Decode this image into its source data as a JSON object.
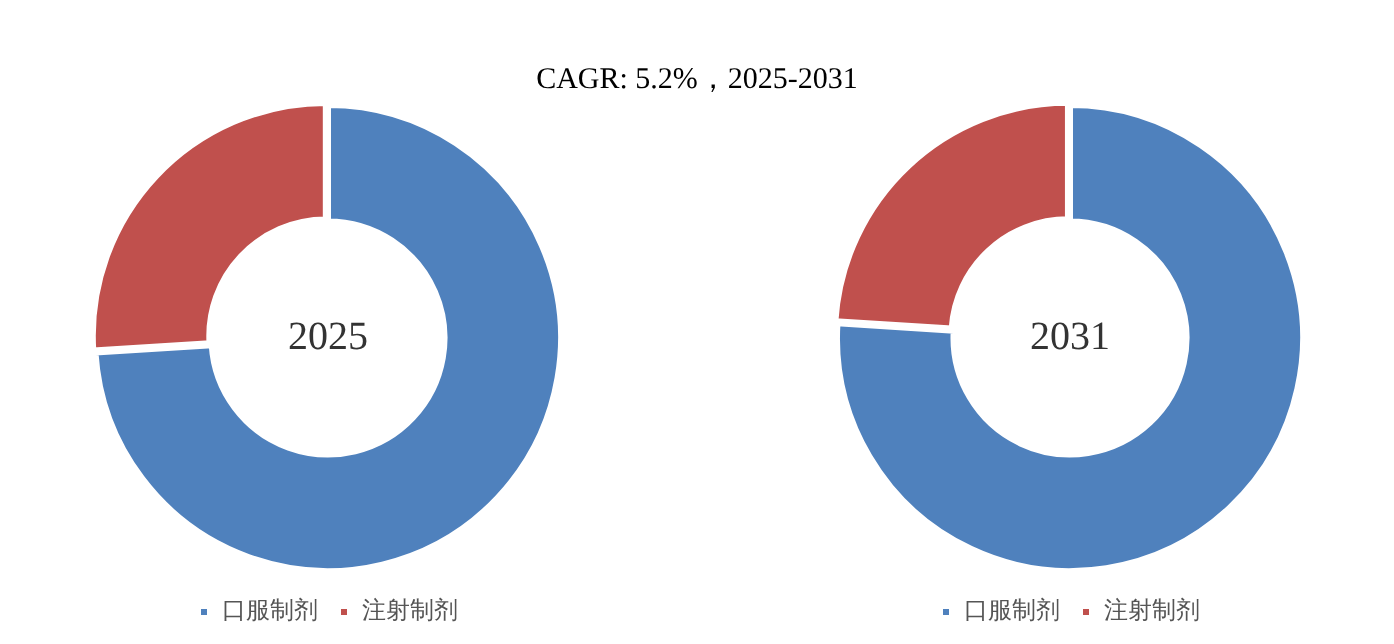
{
  "chart_data": [
    {
      "type": "donut",
      "title": "2025",
      "annotations": [
        "CAGR:  5.2%，2025-2031"
      ],
      "categories": [
        "口服制剂",
        "注射制剂"
      ],
      "values": [
        74,
        26
      ],
      "colors": [
        "#4f81bd",
        "#c0504d"
      ],
      "legend": "bottom"
    },
    {
      "type": "donut",
      "title": "2031",
      "categories": [
        "口服制剂",
        "注射制剂"
      ],
      "values": [
        76,
        24
      ],
      "colors": [
        "#4f81bd",
        "#c0504d"
      ],
      "legend": "bottom"
    }
  ]
}
